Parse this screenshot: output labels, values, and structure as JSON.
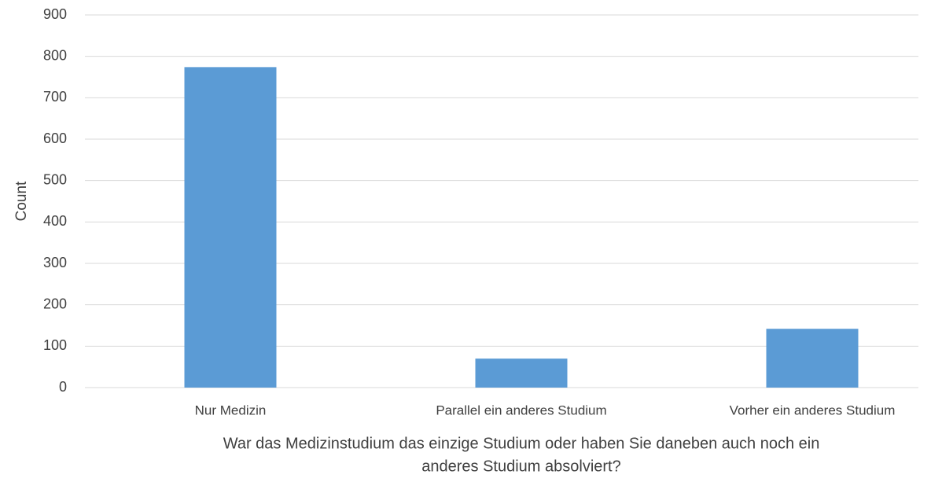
{
  "chart_data": {
    "type": "bar",
    "categories": [
      "Nur Medizin",
      "Parallel ein anderes Studium",
      "Vorher ein anderes Studium"
    ],
    "values": [
      774,
      70,
      142
    ],
    "color": "#5b9bd5",
    "ylabel": "Count",
    "xlabel": [
      "War das Medizinstudium das einzige Studium oder haben Sie daneben auch noch ein",
      "anderes Studium absolviert?"
    ],
    "ylim": [
      0,
      900
    ],
    "yticks": [
      0,
      100,
      200,
      300,
      400,
      500,
      600,
      700,
      800,
      900
    ],
    "grid": true
  }
}
